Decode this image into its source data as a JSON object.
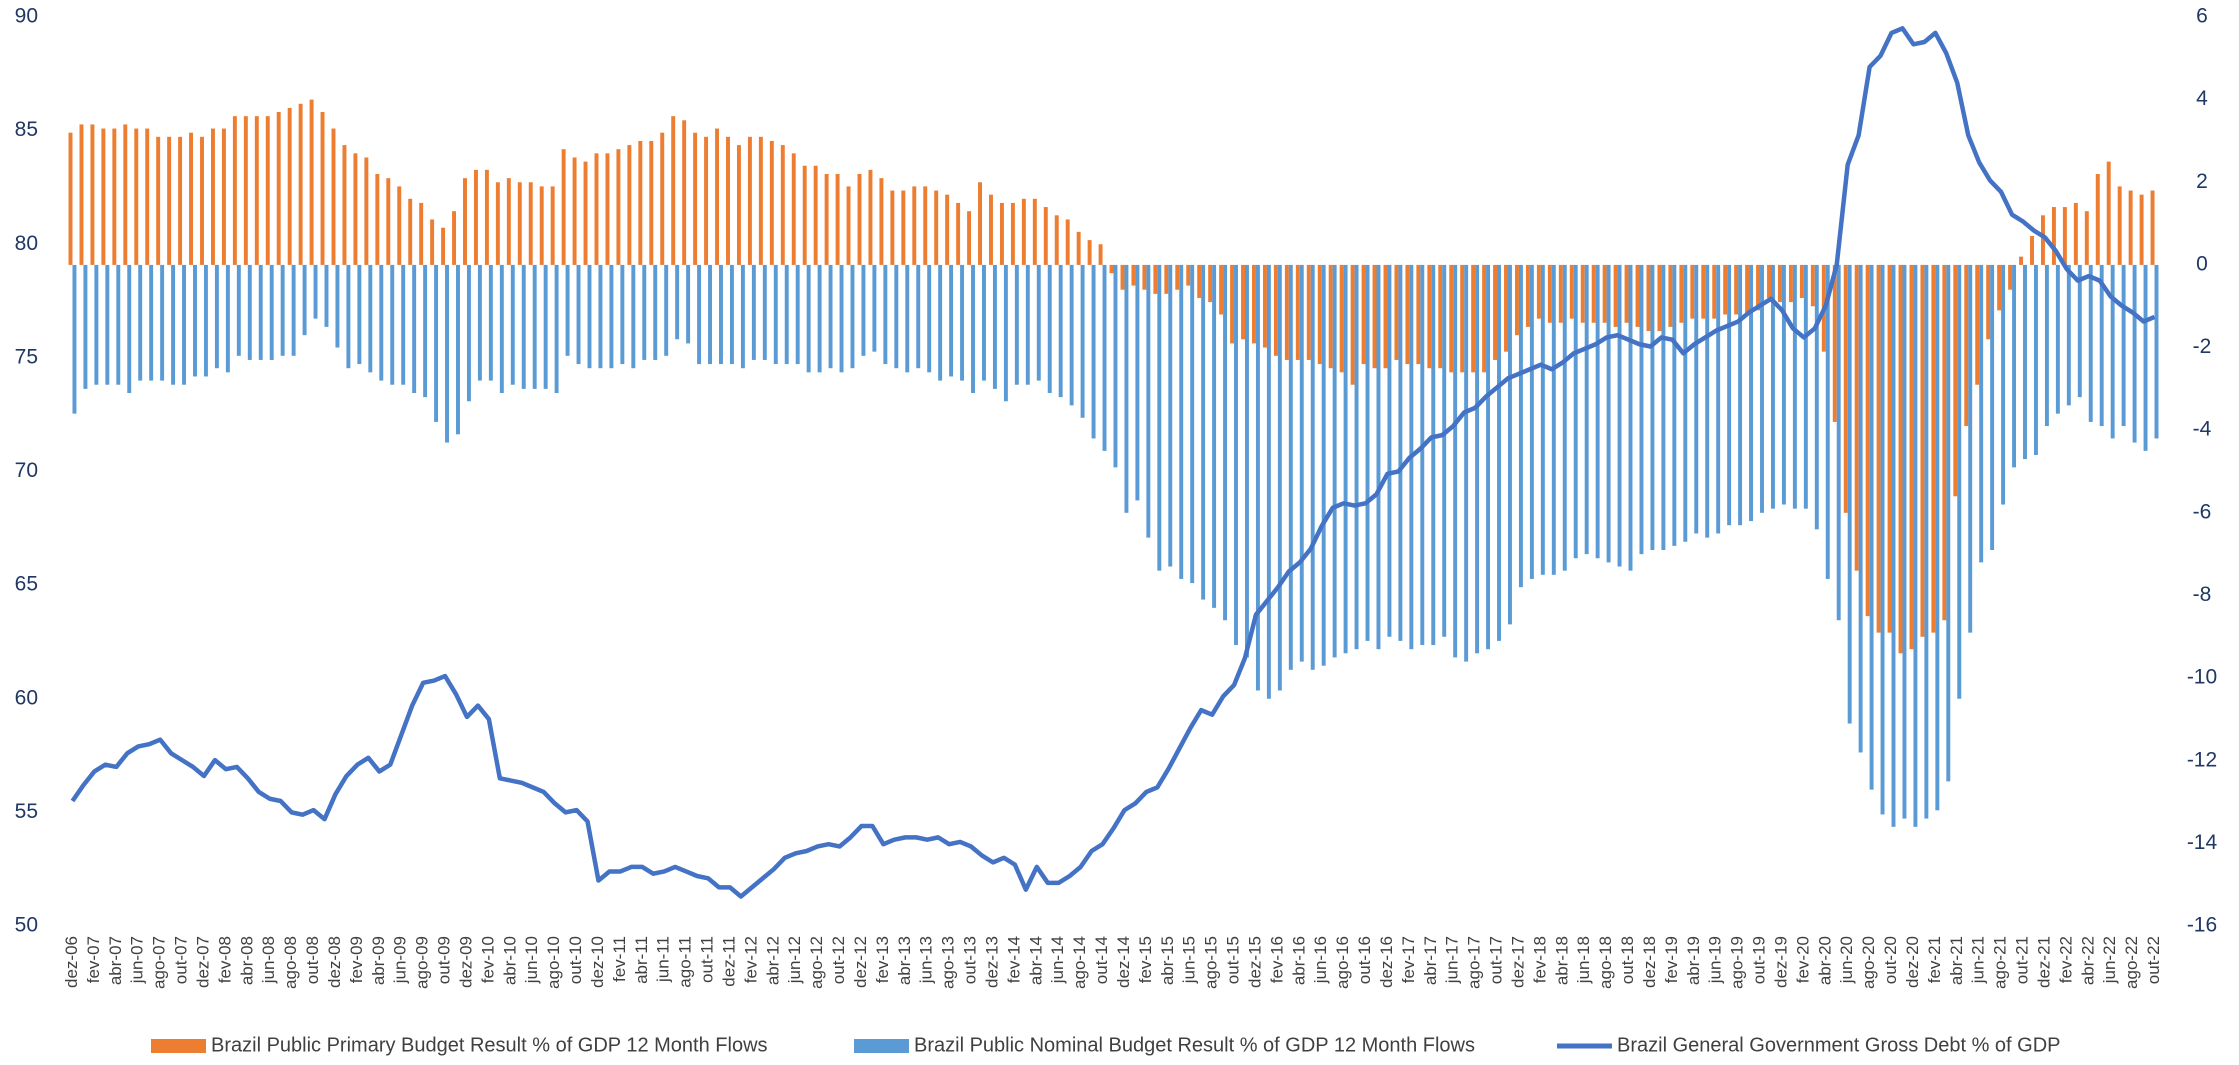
{
  "chart_data": {
    "type": "bar",
    "categories": [
      "dez-06",
      null,
      "fev-07",
      null,
      "abr-07",
      null,
      "jun-07",
      null,
      "ago-07",
      null,
      "out-07",
      null,
      "dez-07",
      null,
      "fev-08",
      null,
      "abr-08",
      null,
      "jun-08",
      null,
      "ago-08",
      null,
      "out-08",
      null,
      "dez-08",
      null,
      "fev-09",
      null,
      "abr-09",
      null,
      "jun-09",
      null,
      "ago-09",
      null,
      "out-09",
      null,
      "dez-09",
      null,
      "fev-10",
      null,
      "abr-10",
      null,
      "jun-10",
      null,
      "ago-10",
      null,
      "out-10",
      null,
      "dez-10",
      null,
      "fev-11",
      null,
      "abr-11",
      null,
      "jun-11",
      null,
      "ago-11",
      null,
      "out-11",
      null,
      "dez-11",
      null,
      "fev-12",
      null,
      "abr-12",
      null,
      "jun-12",
      null,
      "ago-12",
      null,
      "out-12",
      null,
      "dez-12",
      null,
      "fev-13",
      null,
      "abr-13",
      null,
      "jun-13",
      null,
      "ago-13",
      null,
      "out-13",
      null,
      "dez-13",
      null,
      "fev-14",
      null,
      "abr-14",
      null,
      "jun-14",
      null,
      "ago-14",
      null,
      "out-14",
      null,
      "dez-14",
      null,
      "fev-15",
      null,
      "abr-15",
      null,
      "jun-15",
      null,
      "ago-15",
      null,
      "out-15",
      null,
      "dez-15",
      null,
      "fev-16",
      null,
      "abr-16",
      null,
      "jun-16",
      null,
      "ago-16",
      null,
      "out-16",
      null,
      "dez-16",
      null,
      "fev-17",
      null,
      "abr-17",
      null,
      "jun-17",
      null,
      "ago-17",
      null,
      "out-17",
      null,
      "dez-17",
      null,
      "fev-18",
      null,
      "abr-18",
      null,
      "jun-18",
      null,
      "ago-18",
      null,
      "out-18",
      null,
      "dez-18",
      null,
      "fev-19",
      null,
      "abr-19",
      null,
      "jun-19",
      null,
      "ago-19",
      null,
      "out-19",
      null,
      "dez-19",
      null,
      "fev-20",
      null,
      "abr-20",
      null,
      "jun-20",
      null,
      "ago-20",
      null,
      "out-20",
      null,
      "dez-20",
      null,
      "fev-21",
      null,
      "abr-21",
      null,
      "jun-21",
      null,
      "ago-21",
      null,
      "out-21",
      null,
      "dez-21",
      null,
      "fev-22",
      null,
      "abr-22",
      null,
      "jun-22",
      null,
      "ago-22",
      null,
      "out-22"
    ],
    "series": [
      {
        "name": "Brazil Public Primary Budget Result % of GDP 12 Month Flows",
        "type": "bar",
        "axis": "y2",
        "color": "#ed7d31",
        "values": [
          3.2,
          3.4,
          3.4,
          3.3,
          3.3,
          3.4,
          3.3,
          3.3,
          3.1,
          3.1,
          3.1,
          3.2,
          3.1,
          3.3,
          3.3,
          3.6,
          3.6,
          3.6,
          3.6,
          3.7,
          3.8,
          3.9,
          4.0,
          3.7,
          3.3,
          2.9,
          2.7,
          2.6,
          2.2,
          2.1,
          1.9,
          1.6,
          1.5,
          1.1,
          0.9,
          1.3,
          2.1,
          2.3,
          2.3,
          2.0,
          2.1,
          2.0,
          2.0,
          1.9,
          1.9,
          2.8,
          2.6,
          2.5,
          2.7,
          2.7,
          2.8,
          2.9,
          3.0,
          3.0,
          3.2,
          3.6,
          3.5,
          3.2,
          3.1,
          3.3,
          3.1,
          2.9,
          3.1,
          3.1,
          3.0,
          2.9,
          2.7,
          2.4,
          2.4,
          2.2,
          2.2,
          1.9,
          2.2,
          2.3,
          2.1,
          1.8,
          1.8,
          1.9,
          1.9,
          1.8,
          1.7,
          1.5,
          1.3,
          2.0,
          1.7,
          1.5,
          1.5,
          1.6,
          1.6,
          1.4,
          1.2,
          1.1,
          0.8,
          0.6,
          0.5,
          -0.2,
          -0.6,
          -0.5,
          -0.6,
          -0.7,
          -0.7,
          -0.6,
          -0.5,
          -0.8,
          -0.9,
          -1.2,
          -1.9,
          -1.8,
          -1.9,
          -2.0,
          -2.2,
          -2.3,
          -2.3,
          -2.3,
          -2.4,
          -2.5,
          -2.6,
          -2.9,
          -2.4,
          -2.5,
          -2.5,
          -2.3,
          -2.4,
          -2.4,
          -2.5,
          -2.5,
          -2.6,
          -2.6,
          -2.6,
          -2.6,
          -2.3,
          -2.1,
          -1.7,
          -1.5,
          -1.3,
          -1.4,
          -1.4,
          -1.3,
          -1.4,
          -1.4,
          -1.4,
          -1.5,
          -1.4,
          -1.5,
          -1.6,
          -1.6,
          -1.5,
          -1.4,
          -1.3,
          -1.3,
          -1.3,
          -1.2,
          -1.2,
          -1.2,
          -1.1,
          -0.8,
          -0.9,
          -0.9,
          -0.8,
          -1.0,
          -2.1,
          -3.8,
          -6.0,
          -7.4,
          -8.5,
          -8.9,
          -8.9,
          -9.4,
          -9.3,
          -9.0,
          -8.9,
          -8.6,
          -5.6,
          -3.9,
          -2.9,
          -1.8,
          -1.1,
          -0.6,
          0.2,
          0.7,
          1.2,
          1.4,
          1.4,
          1.5,
          1.3,
          2.2,
          2.5,
          1.9,
          1.8,
          1.7,
          1.8
        ]
      },
      {
        "name": "Brazil Public Nominal Budget Result % of GDP 12 Month Flows",
        "type": "bar",
        "axis": "y2",
        "color": "#5b9bd5",
        "values": [
          -3.6,
          -3.0,
          -2.9,
          -2.9,
          -2.9,
          -3.1,
          -2.8,
          -2.8,
          -2.8,
          -2.9,
          -2.9,
          -2.7,
          -2.7,
          -2.5,
          -2.6,
          -2.2,
          -2.3,
          -2.3,
          -2.3,
          -2.2,
          -2.2,
          -1.7,
          -1.3,
          -1.5,
          -2.0,
          -2.5,
          -2.4,
          -2.6,
          -2.8,
          -2.9,
          -2.9,
          -3.1,
          -3.2,
          -3.8,
          -4.3,
          -4.1,
          -3.3,
          -2.8,
          -2.8,
          -3.1,
          -2.9,
          -3.0,
          -3.0,
          -3.0,
          -3.1,
          -2.2,
          -2.4,
          -2.5,
          -2.5,
          -2.5,
          -2.4,
          -2.5,
          -2.3,
          -2.3,
          -2.2,
          -1.8,
          -1.9,
          -2.4,
          -2.4,
          -2.4,
          -2.4,
          -2.5,
          -2.3,
          -2.3,
          -2.4,
          -2.4,
          -2.4,
          -2.6,
          -2.6,
          -2.5,
          -2.6,
          -2.5,
          -2.2,
          -2.1,
          -2.4,
          -2.5,
          -2.6,
          -2.5,
          -2.6,
          -2.8,
          -2.7,
          -2.8,
          -3.1,
          -2.8,
          -3.0,
          -3.3,
          -2.9,
          -2.9,
          -2.8,
          -3.1,
          -3.2,
          -3.4,
          -3.7,
          -4.2,
          -4.5,
          -4.9,
          -6.0,
          -5.7,
          -6.6,
          -7.4,
          -7.3,
          -7.6,
          -7.7,
          -8.1,
          -8.3,
          -8.6,
          -9.2,
          -9.5,
          -10.3,
          -10.5,
          -10.3,
          -9.8,
          -9.6,
          -9.8,
          -9.7,
          -9.5,
          -9.4,
          -9.3,
          -9.1,
          -9.3,
          -9.0,
          -9.1,
          -9.3,
          -9.2,
          -9.2,
          -9.0,
          -9.5,
          -9.6,
          -9.4,
          -9.3,
          -9.1,
          -8.7,
          -7.8,
          -7.6,
          -7.5,
          -7.5,
          -7.4,
          -7.1,
          -7.0,
          -7.1,
          -7.2,
          -7.3,
          -7.4,
          -7.0,
          -6.9,
          -6.9,
          -6.8,
          -6.7,
          -6.5,
          -6.6,
          -6.5,
          -6.3,
          -6.3,
          -6.2,
          -6.0,
          -5.9,
          -5.8,
          -5.9,
          -5.9,
          -6.4,
          -7.6,
          -8.6,
          -11.1,
          -11.8,
          -12.7,
          -13.3,
          -13.6,
          -13.4,
          -13.6,
          -13.4,
          -13.2,
          -12.5,
          -10.5,
          -8.9,
          -7.2,
          -6.9,
          -5.8,
          -4.9,
          -4.7,
          -4.6,
          -3.9,
          -3.6,
          -3.4,
          -3.2,
          -3.8,
          -3.9,
          -4.2,
          -3.9,
          -4.3,
          -4.5,
          -4.2
        ]
      },
      {
        "name": "Brazil General Government Gross Debt % of GDP",
        "type": "line",
        "axis": "y",
        "color": "#4472c4",
        "values": [
          55.5,
          56.2,
          56.8,
          57.1,
          57.0,
          57.6,
          57.9,
          58.0,
          58.2,
          57.6,
          57.3,
          57.0,
          56.6,
          57.3,
          56.9,
          57.0,
          56.5,
          55.9,
          55.6,
          55.5,
          55.0,
          54.9,
          55.1,
          54.7,
          55.8,
          56.6,
          57.1,
          57.4,
          56.8,
          57.1,
          58.4,
          59.7,
          60.7,
          60.8,
          61.0,
          60.2,
          59.2,
          59.7,
          59.1,
          56.5,
          56.4,
          56.3,
          56.1,
          55.9,
          55.4,
          55.0,
          55.1,
          54.6,
          52.0,
          52.4,
          52.4,
          52.6,
          52.6,
          52.3,
          52.4,
          52.6,
          52.4,
          52.2,
          52.1,
          51.7,
          51.7,
          51.3,
          51.7,
          52.1,
          52.5,
          53.0,
          53.2,
          53.3,
          53.5,
          53.6,
          53.5,
          53.9,
          54.4,
          54.4,
          53.6,
          53.8,
          53.9,
          53.9,
          53.8,
          53.9,
          53.6,
          53.7,
          53.5,
          53.1,
          52.8,
          53.0,
          52.7,
          51.6,
          52.6,
          51.9,
          51.9,
          52.2,
          52.6,
          53.3,
          53.6,
          54.3,
          55.1,
          55.4,
          55.9,
          56.1,
          56.9,
          57.8,
          58.7,
          59.5,
          59.3,
          60.1,
          60.6,
          61.8,
          63.7,
          64.3,
          64.9,
          65.6,
          66.0,
          66.6,
          67.6,
          68.4,
          68.6,
          68.5,
          68.6,
          69.0,
          69.9,
          70.0,
          70.6,
          71.0,
          71.5,
          71.6,
          72.0,
          72.6,
          72.8,
          73.3,
          73.7,
          74.1,
          74.3,
          74.5,
          74.7,
          74.5,
          74.8,
          75.2,
          75.4,
          75.6,
          75.9,
          76.0,
          75.8,
          75.6,
          75.5,
          75.9,
          75.8,
          75.2,
          75.6,
          75.9,
          76.2,
          76.4,
          76.6,
          77.0,
          77.3,
          77.6,
          77.1,
          76.3,
          75.9,
          76.3,
          77.3,
          79.1,
          83.5,
          84.8,
          87.8,
          88.3,
          89.3,
          89.5,
          88.8,
          88.9,
          89.3,
          88.4,
          87.1,
          84.8,
          83.6,
          82.8,
          82.3,
          81.3,
          81.0,
          80.6,
          80.3,
          79.7,
          78.9,
          78.4,
          78.6,
          78.4,
          77.7,
          77.3,
          77.0,
          76.6,
          76.8
        ]
      }
    ],
    "ylim": [
      50,
      90
    ],
    "yticks": [
      50,
      55,
      60,
      65,
      70,
      75,
      80,
      85,
      90
    ],
    "y2lim": [
      -16,
      6
    ],
    "y2ticks": [
      -16,
      -14,
      -12,
      -10,
      -8,
      -6,
      -4,
      -2,
      0,
      2,
      4,
      6
    ],
    "grid": false,
    "legend": "bottom"
  }
}
